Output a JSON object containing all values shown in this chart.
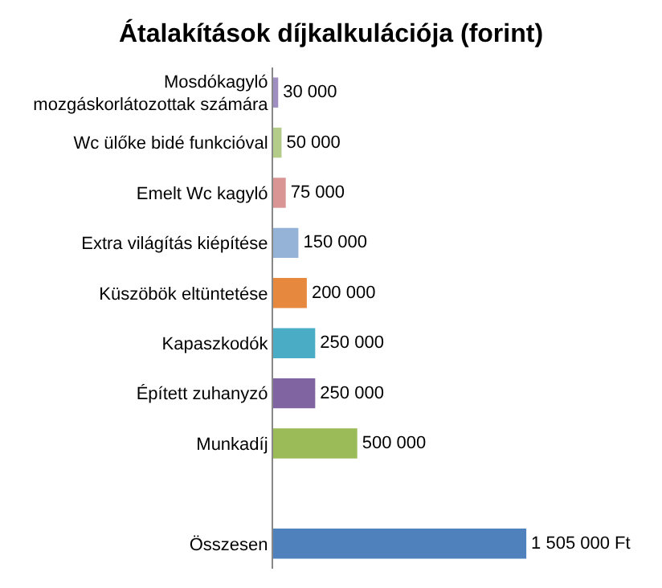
{
  "chart_data": {
    "type": "bar",
    "orientation": "horizontal",
    "title": "Átalakítások díjkalkulációja (forint)",
    "categories": [
      "Mosdókagyló\nmozgáskorlátozottak számára",
      "Wc ülőke bidé funkcióval",
      "Emelt Wc kagyló",
      "Extra világítás kiépítése",
      "Küszöbök eltüntetése",
      "Kapaszkodók",
      "Épített zuhanyzó",
      "Munkadíj",
      null,
      "Összesen"
    ],
    "values": [
      30000,
      50000,
      75000,
      150000,
      200000,
      250000,
      250000,
      500000,
      null,
      1505000
    ],
    "colors": [
      "#9f8fc0",
      "#b3cc8a",
      "#d99594",
      "#95b3d7",
      "#e6883e",
      "#4bacc6",
      "#8064a2",
      "#9bbb59",
      "#ffffff",
      "#4f81bd"
    ],
    "value_labels": [
      "30 000",
      "50 000",
      "75 000",
      "150 000",
      "200 000",
      "250 000",
      "250 000",
      "500 000",
      null,
      "1 505 000 Ft"
    ],
    "tick_labels": "y",
    "grid": false,
    "legend": false
  }
}
